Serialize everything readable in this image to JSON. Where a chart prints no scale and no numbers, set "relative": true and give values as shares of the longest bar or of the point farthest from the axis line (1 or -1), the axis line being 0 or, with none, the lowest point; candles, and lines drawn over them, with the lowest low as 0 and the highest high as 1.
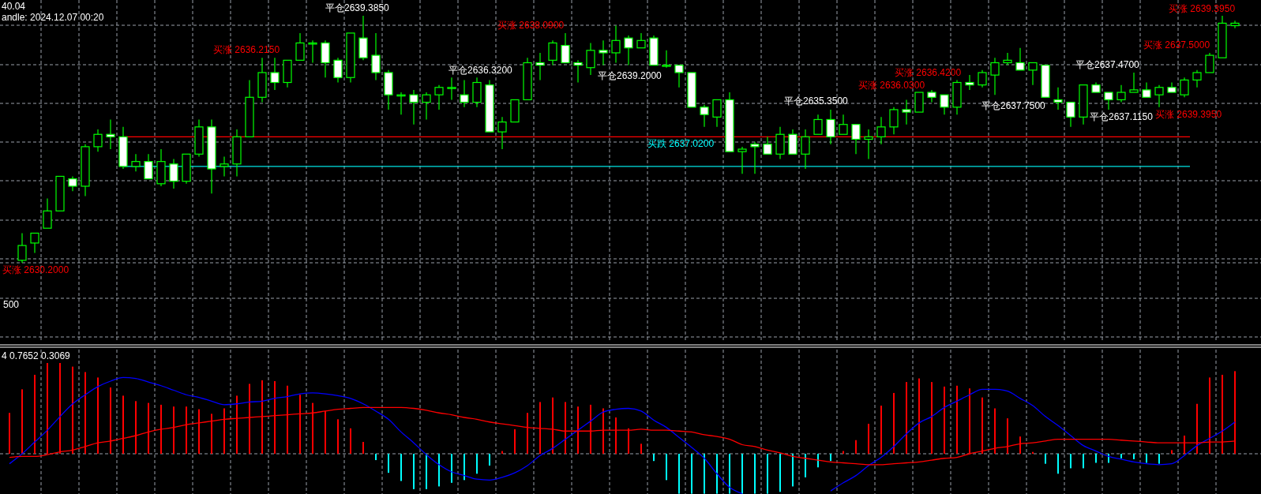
{
  "chart_data": [
    {
      "type": "candlestick",
      "relative": true,
      "grid": true,
      "categories": [
        null,
        null,
        null,
        null,
        null,
        null,
        null,
        null,
        null,
        null,
        null,
        null,
        null,
        null,
        null,
        null,
        null,
        null,
        null,
        null,
        null,
        null,
        null,
        null,
        null,
        null,
        null,
        null,
        null,
        null,
        null,
        null,
        null,
        null,
        null,
        null,
        null,
        null,
        null,
        null,
        null,
        null,
        null,
        null,
        null,
        null,
        null,
        null,
        null,
        null,
        null,
        null,
        null,
        null,
        null,
        null,
        null,
        null,
        null,
        null,
        null,
        null,
        null,
        null,
        null,
        null,
        null,
        null,
        null,
        null,
        null,
        null,
        null,
        null,
        null,
        null,
        null,
        null,
        null,
        null,
        null,
        null,
        null,
        null,
        null,
        null,
        null,
        null,
        null,
        null,
        null,
        null,
        null,
        null,
        null,
        null,
        null,
        null
      ],
      "series": [
        {
          "color": "#00ff00",
          "ohlc": [
            null,
            [
              0.01,
              0.12,
              0,
              0.07
            ],
            [
              0.08,
              0.12,
              0.04,
              0.12
            ],
            [
              0.14,
              0.26,
              0.14,
              0.21
            ],
            [
              0.21,
              0.35,
              0.21,
              0.35
            ],
            [
              0.34,
              0.35,
              0.29,
              0.31
            ],
            [
              0.31,
              0.48,
              0.27,
              0.47
            ],
            [
              0.47,
              0.54,
              0.45,
              0.52
            ],
            [
              0.52,
              0.58,
              0.46,
              0.51
            ],
            [
              0.51,
              0.55,
              0.38,
              0.39
            ],
            [
              0.39,
              0.44,
              0.37,
              0.41
            ],
            [
              0.41,
              0.44,
              0.34,
              0.34
            ],
            [
              0.32,
              0.46,
              0.31,
              0.41
            ],
            [
              0.4,
              0.42,
              0.3,
              0.33
            ],
            [
              0.33,
              0.44,
              0.32,
              0.44
            ],
            [
              0.44,
              0.58,
              0.43,
              0.55
            ],
            [
              0.55,
              0.58,
              0.28,
              0.38
            ],
            [
              0.39,
              0.43,
              0.35,
              0.4
            ],
            [
              0.4,
              0.54,
              0.35,
              0.51
            ],
            [
              0.51,
              0.74,
              0.51,
              0.67
            ],
            [
              0.67,
              0.83,
              0.65,
              0.77
            ],
            [
              0.77,
              0.83,
              0.7,
              0.73
            ],
            [
              0.73,
              0.82,
              0.71,
              0.82
            ],
            [
              0.82,
              0.93,
              0.82,
              0.89
            ],
            [
              0.89,
              0.9,
              0.81,
              0.89
            ],
            [
              0.89,
              0.9,
              0.75,
              0.81
            ],
            [
              0.82,
              0.83,
              0.73,
              0.75
            ],
            [
              0.75,
              0.93,
              0.73,
              0.93
            ],
            [
              0.91,
              1,
              0.82,
              0.83
            ],
            [
              0.84,
              0.93,
              0.74,
              0.77
            ],
            [
              0.77,
              0.78,
              0.62,
              0.68
            ],
            [
              0.68,
              0.69,
              0.6,
              0.68
            ],
            [
              0.68,
              0.7,
              0.56,
              0.65
            ],
            [
              0.65,
              0.69,
              0.58,
              0.68
            ],
            [
              0.68,
              0.72,
              0.62,
              0.71
            ],
            [
              0.71,
              0.75,
              0.66,
              0.71
            ],
            [
              0.68,
              0.74,
              0.63,
              0.65
            ],
            [
              0.65,
              0.75,
              0.63,
              0.73
            ],
            [
              0.72,
              0.74,
              0.53,
              0.53
            ],
            [
              0.53,
              0.59,
              0.46,
              0.57
            ],
            [
              0.57,
              0.66,
              0.57,
              0.66
            ],
            [
              0.66,
              0.83,
              0.66,
              0.81
            ],
            [
              0.81,
              0.85,
              0.74,
              0.8
            ],
            [
              0.82,
              0.9,
              0.8,
              0.89
            ],
            [
              0.88,
              0.93,
              0.81,
              0.81
            ],
            [
              0.81,
              0.82,
              0.73,
              0.8
            ],
            [
              0.79,
              0.89,
              0.76,
              0.86
            ],
            [
              0.86,
              0.9,
              0.8,
              0.85
            ],
            [
              0.85,
              0.96,
              0.81,
              0.9
            ],
            [
              0.91,
              0.92,
              0.8,
              0.87
            ],
            [
              0.87,
              0.93,
              0.87,
              0.9
            ],
            [
              0.91,
              0.92,
              0.8,
              0.8
            ],
            [
              0.8,
              0.86,
              0.79,
              0.8
            ],
            [
              0.8,
              0.8,
              0.71,
              0.77
            ],
            [
              0.77,
              0.77,
              0.63,
              0.63
            ],
            [
              0.63,
              0.64,
              0.55,
              0.6
            ],
            [
              0.59,
              0.66,
              0.55,
              0.66
            ],
            [
              0.66,
              0.69,
              0.45,
              0.45
            ],
            [
              0.45,
              0.47,
              0.36,
              0.46
            ],
            [
              0.48,
              0.49,
              0.36,
              0.47
            ],
            [
              0.48,
              0.51,
              0.44,
              0.44
            ],
            [
              0.44,
              0.55,
              0.42,
              0.52
            ],
            [
              0.52,
              0.54,
              0.44,
              0.44
            ],
            [
              0.44,
              0.54,
              0.38,
              0.51
            ],
            [
              0.52,
              0.6,
              0.52,
              0.58
            ],
            [
              0.58,
              0.62,
              0.48,
              0.51
            ],
            [
              0.52,
              0.6,
              0.52,
              0.56
            ],
            [
              0.56,
              0.56,
              0.44,
              0.5
            ],
            [
              0.5,
              0.54,
              0.42,
              0.51
            ],
            [
              0.51,
              0.59,
              0.48,
              0.55
            ],
            [
              0.55,
              0.63,
              0.52,
              0.62
            ],
            [
              0.62,
              0.66,
              0.56,
              0.61
            ],
            [
              0.61,
              0.69,
              0.61,
              0.69
            ],
            [
              0.69,
              0.7,
              0.65,
              0.67
            ],
            [
              0.68,
              0.68,
              0.6,
              0.63
            ],
            [
              0.63,
              0.74,
              0.6,
              0.73
            ],
            [
              0.73,
              0.76,
              0.7,
              0.72
            ],
            [
              0.72,
              0.78,
              0.71,
              0.77
            ],
            [
              0.76,
              0.83,
              0.68,
              0.81
            ],
            [
              0.81,
              0.85,
              0.8,
              0.82
            ],
            [
              0.81,
              0.87,
              0.78,
              0.78
            ],
            [
              0.78,
              0.81,
              0.72,
              0.81
            ],
            [
              0.8,
              0.8,
              0.67,
              0.67
            ],
            [
              0.66,
              0.71,
              0.62,
              0.65
            ],
            [
              0.65,
              0.65,
              0.55,
              0.59
            ],
            [
              0.59,
              0.72,
              0.56,
              0.72
            ],
            [
              0.72,
              0.73,
              0.69,
              0.69
            ],
            [
              0.69,
              0.69,
              0.62,
              0.66
            ],
            [
              0.66,
              0.72,
              0.65,
              0.69
            ],
            [
              0.69,
              0.77,
              0.69,
              0.7
            ],
            [
              0.7,
              0.73,
              0.67,
              0.67
            ],
            [
              0.68,
              0.72,
              0.63,
              0.71
            ],
            [
              0.71,
              0.73,
              0.69,
              0.69
            ],
            [
              0.68,
              0.75,
              0.67,
              0.74
            ],
            [
              0.74,
              0.78,
              0.71,
              0.77
            ],
            [
              0.77,
              0.85,
              0.77,
              0.84
            ],
            [
              0.83,
              1,
              0.83,
              0.97
            ],
            [
              0.96,
              0.98,
              0.95,
              0.97
            ]
          ]
        }
      ],
      "ref_lines": [
        {
          "axis": "y",
          "value": 0.51,
          "color": "#ff0000"
        },
        {
          "axis": "y",
          "value": 0.39,
          "color": "#00e5e5"
        }
      ],
      "annotations": [
        "40.04",
        "andle: 2024.12.07 00:20",
        "买涨 2630.2000",
        "500",
        "买涨 2636.2150",
        "平仓2639.3850",
        "平仓2636.3200",
        "买涨 2638.0900",
        "平仓2639.2000",
        "买跌 2637.0200",
        "平仓2635.3500",
        "买涨 2636.0300",
        "买涨 2636.4200",
        "平仓2637.7500",
        "平仓2637.4700",
        "平仓2637.1150",
        "买涨 2637.5000",
        "买涨 2639.3950",
        "买涨 2639.3950"
      ]
    },
    {
      "type": "bar",
      "relative": true,
      "grid": true,
      "categories": [
        null,
        null,
        null,
        null,
        null,
        null,
        null,
        null,
        null,
        null,
        null,
        null,
        null,
        null,
        null,
        null,
        null,
        null,
        null,
        null,
        null,
        null,
        null,
        null,
        null,
        null,
        null,
        null,
        null,
        null,
        null,
        null,
        null,
        null,
        null,
        null,
        null,
        null,
        null,
        null,
        null,
        null,
        null,
        null,
        null,
        null,
        null,
        null,
        null,
        null,
        null,
        null,
        null,
        null,
        null,
        null,
        null,
        null,
        null,
        null,
        null,
        null,
        null,
        null,
        null,
        null,
        null,
        null,
        null,
        null,
        null,
        null,
        null,
        null,
        null,
        null,
        null,
        null,
        null,
        null,
        null,
        null,
        null,
        null,
        null,
        null,
        null,
        null,
        null,
        null,
        null,
        null,
        null,
        null,
        null,
        null,
        null,
        null
      ],
      "series": [
        {
          "color": "#ff0000",
          "values": [
            0.45,
            0.71,
            0.87,
            1.0,
            1.0,
            0.96,
            0.9,
            0.84,
            0.73,
            0.64,
            0.58,
            0.56,
            0.54,
            0.52,
            0.52,
            0.49,
            0.44,
            0.5,
            0.64,
            0.77,
            0.81,
            0.8,
            0.75,
            0.65,
            0.56,
            0.47,
            0.38,
            0.28,
            0.13,
            null,
            null,
            null,
            null,
            null,
            null,
            null,
            null,
            null,
            null,
            0.03,
            0.27,
            0.45,
            0.57,
            0.62,
            0.57,
            0.52,
            0.54,
            0.5,
            0.4,
            0.28,
            0.11,
            null,
            null,
            null,
            null,
            null,
            null,
            null,
            null,
            null,
            null,
            null,
            null,
            null,
            null,
            null,
            0.03,
            0.15,
            0.33,
            0.53,
            0.67,
            0.79,
            0.83,
            0.79,
            0.74,
            0.75,
            0.72,
            0.62,
            0.5,
            0.39,
            0.19,
            0.02,
            null,
            null,
            null,
            null,
            null,
            null,
            null,
            null,
            null,
            null,
            0.04,
            0.2,
            0.55,
            0.84,
            0.87,
            0.91
          ]
        },
        {
          "color": "#00ffff",
          "values": [
            null,
            null,
            null,
            null,
            null,
            null,
            null,
            null,
            null,
            null,
            null,
            null,
            null,
            null,
            null,
            null,
            null,
            null,
            null,
            null,
            null,
            null,
            null,
            null,
            null,
            null,
            null,
            null,
            null,
            -0.07,
            -0.21,
            -0.3,
            -0.39,
            -0.39,
            -0.36,
            -0.32,
            -0.29,
            -0.22,
            -0.13,
            null,
            null,
            null,
            null,
            null,
            null,
            null,
            null,
            null,
            null,
            null,
            null,
            -0.08,
            -0.29,
            -0.44,
            -0.44,
            -0.44,
            -0.44,
            -0.44,
            -0.44,
            -0.44,
            -0.44,
            -0.42,
            -0.36,
            -0.26,
            -0.15,
            -0.08,
            null,
            null,
            null,
            null,
            null,
            null,
            null,
            null,
            null,
            null,
            null,
            null,
            null,
            null,
            null,
            null,
            -0.11,
            -0.22,
            -0.16,
            -0.16,
            -0.1,
            -0.1,
            -0.05,
            -0.06,
            -0.1,
            -0.11,
            null,
            null,
            null,
            null,
            null,
            null
          ]
        },
        {
          "type": "line",
          "color": "#0000ff",
          "values": [
            -0.11,
            0.0,
            0.13,
            0.26,
            0.41,
            0.55,
            0.65,
            0.74,
            0.8,
            0.84,
            0.83,
            0.79,
            0.75,
            0.7,
            0.65,
            0.62,
            0.58,
            0.54,
            0.55,
            0.57,
            0.58,
            0.61,
            0.63,
            0.66,
            0.67,
            0.66,
            0.64,
            0.61,
            0.55,
            0.47,
            0.38,
            0.24,
            0.12,
            -0.01,
            -0.12,
            -0.2,
            -0.24,
            -0.28,
            -0.29,
            -0.26,
            -0.21,
            -0.13,
            -0.02,
            0.06,
            0.16,
            0.26,
            0.36,
            0.46,
            0.49,
            0.5,
            0.47,
            0.37,
            0.29,
            0.18,
            0.07,
            -0.05,
            -0.22,
            -0.37,
            -0.44,
            null,
            null,
            null,
            null,
            null,
            null,
            -0.41,
            -0.32,
            -0.24,
            -0.13,
            -0.04,
            0.08,
            0.22,
            0.34,
            0.41,
            0.51,
            0.58,
            0.65,
            0.71,
            0.71,
            0.69,
            0.61,
            0.53,
            0.41,
            0.31,
            0.2,
            0.09,
            0.03,
            -0.03,
            -0.06,
            -0.09,
            -0.11,
            -0.12,
            -0.11,
            -0.02,
            0.09,
            0.17,
            0.25,
            0.35
          ]
        },
        {
          "type": "line",
          "color": "#ff0000",
          "values": [
            -0.04,
            -0.03,
            -0.03,
            -0.01,
            0.02,
            0.04,
            0.08,
            0.12,
            0.14,
            0.17,
            0.2,
            0.24,
            0.27,
            0.29,
            0.32,
            0.34,
            0.36,
            0.38,
            0.39,
            0.4,
            0.41,
            0.42,
            0.43,
            0.44,
            0.45,
            0.47,
            0.49,
            0.5,
            0.51,
            0.51,
            0.51,
            0.51,
            0.5,
            0.48,
            0.45,
            0.43,
            0.4,
            0.38,
            0.35,
            0.33,
            0.31,
            0.29,
            0.28,
            0.27,
            0.25,
            0.25,
            0.25,
            0.26,
            0.26,
            0.26,
            0.27,
            0.26,
            0.26,
            0.25,
            0.24,
            0.21,
            0.19,
            0.16,
            0.1,
            0.08,
            0.04,
            0.01,
            -0.03,
            -0.05,
            -0.07,
            -0.09,
            -0.1,
            -0.11,
            -0.12,
            -0.12,
            -0.11,
            -0.1,
            -0.09,
            -0.07,
            -0.05,
            -0.04,
            0.0,
            0.03,
            0.06,
            0.08,
            0.11,
            0.12,
            0.14,
            0.16,
            0.16,
            0.16,
            0.16,
            0.16,
            0.15,
            0.14,
            0.13,
            0.12,
            0.12,
            0.12,
            0.12,
            0.13,
            0.13,
            0.14
          ]
        }
      ],
      "annotations": [
        "4 0.7652 0.3069"
      ]
    }
  ]
}
